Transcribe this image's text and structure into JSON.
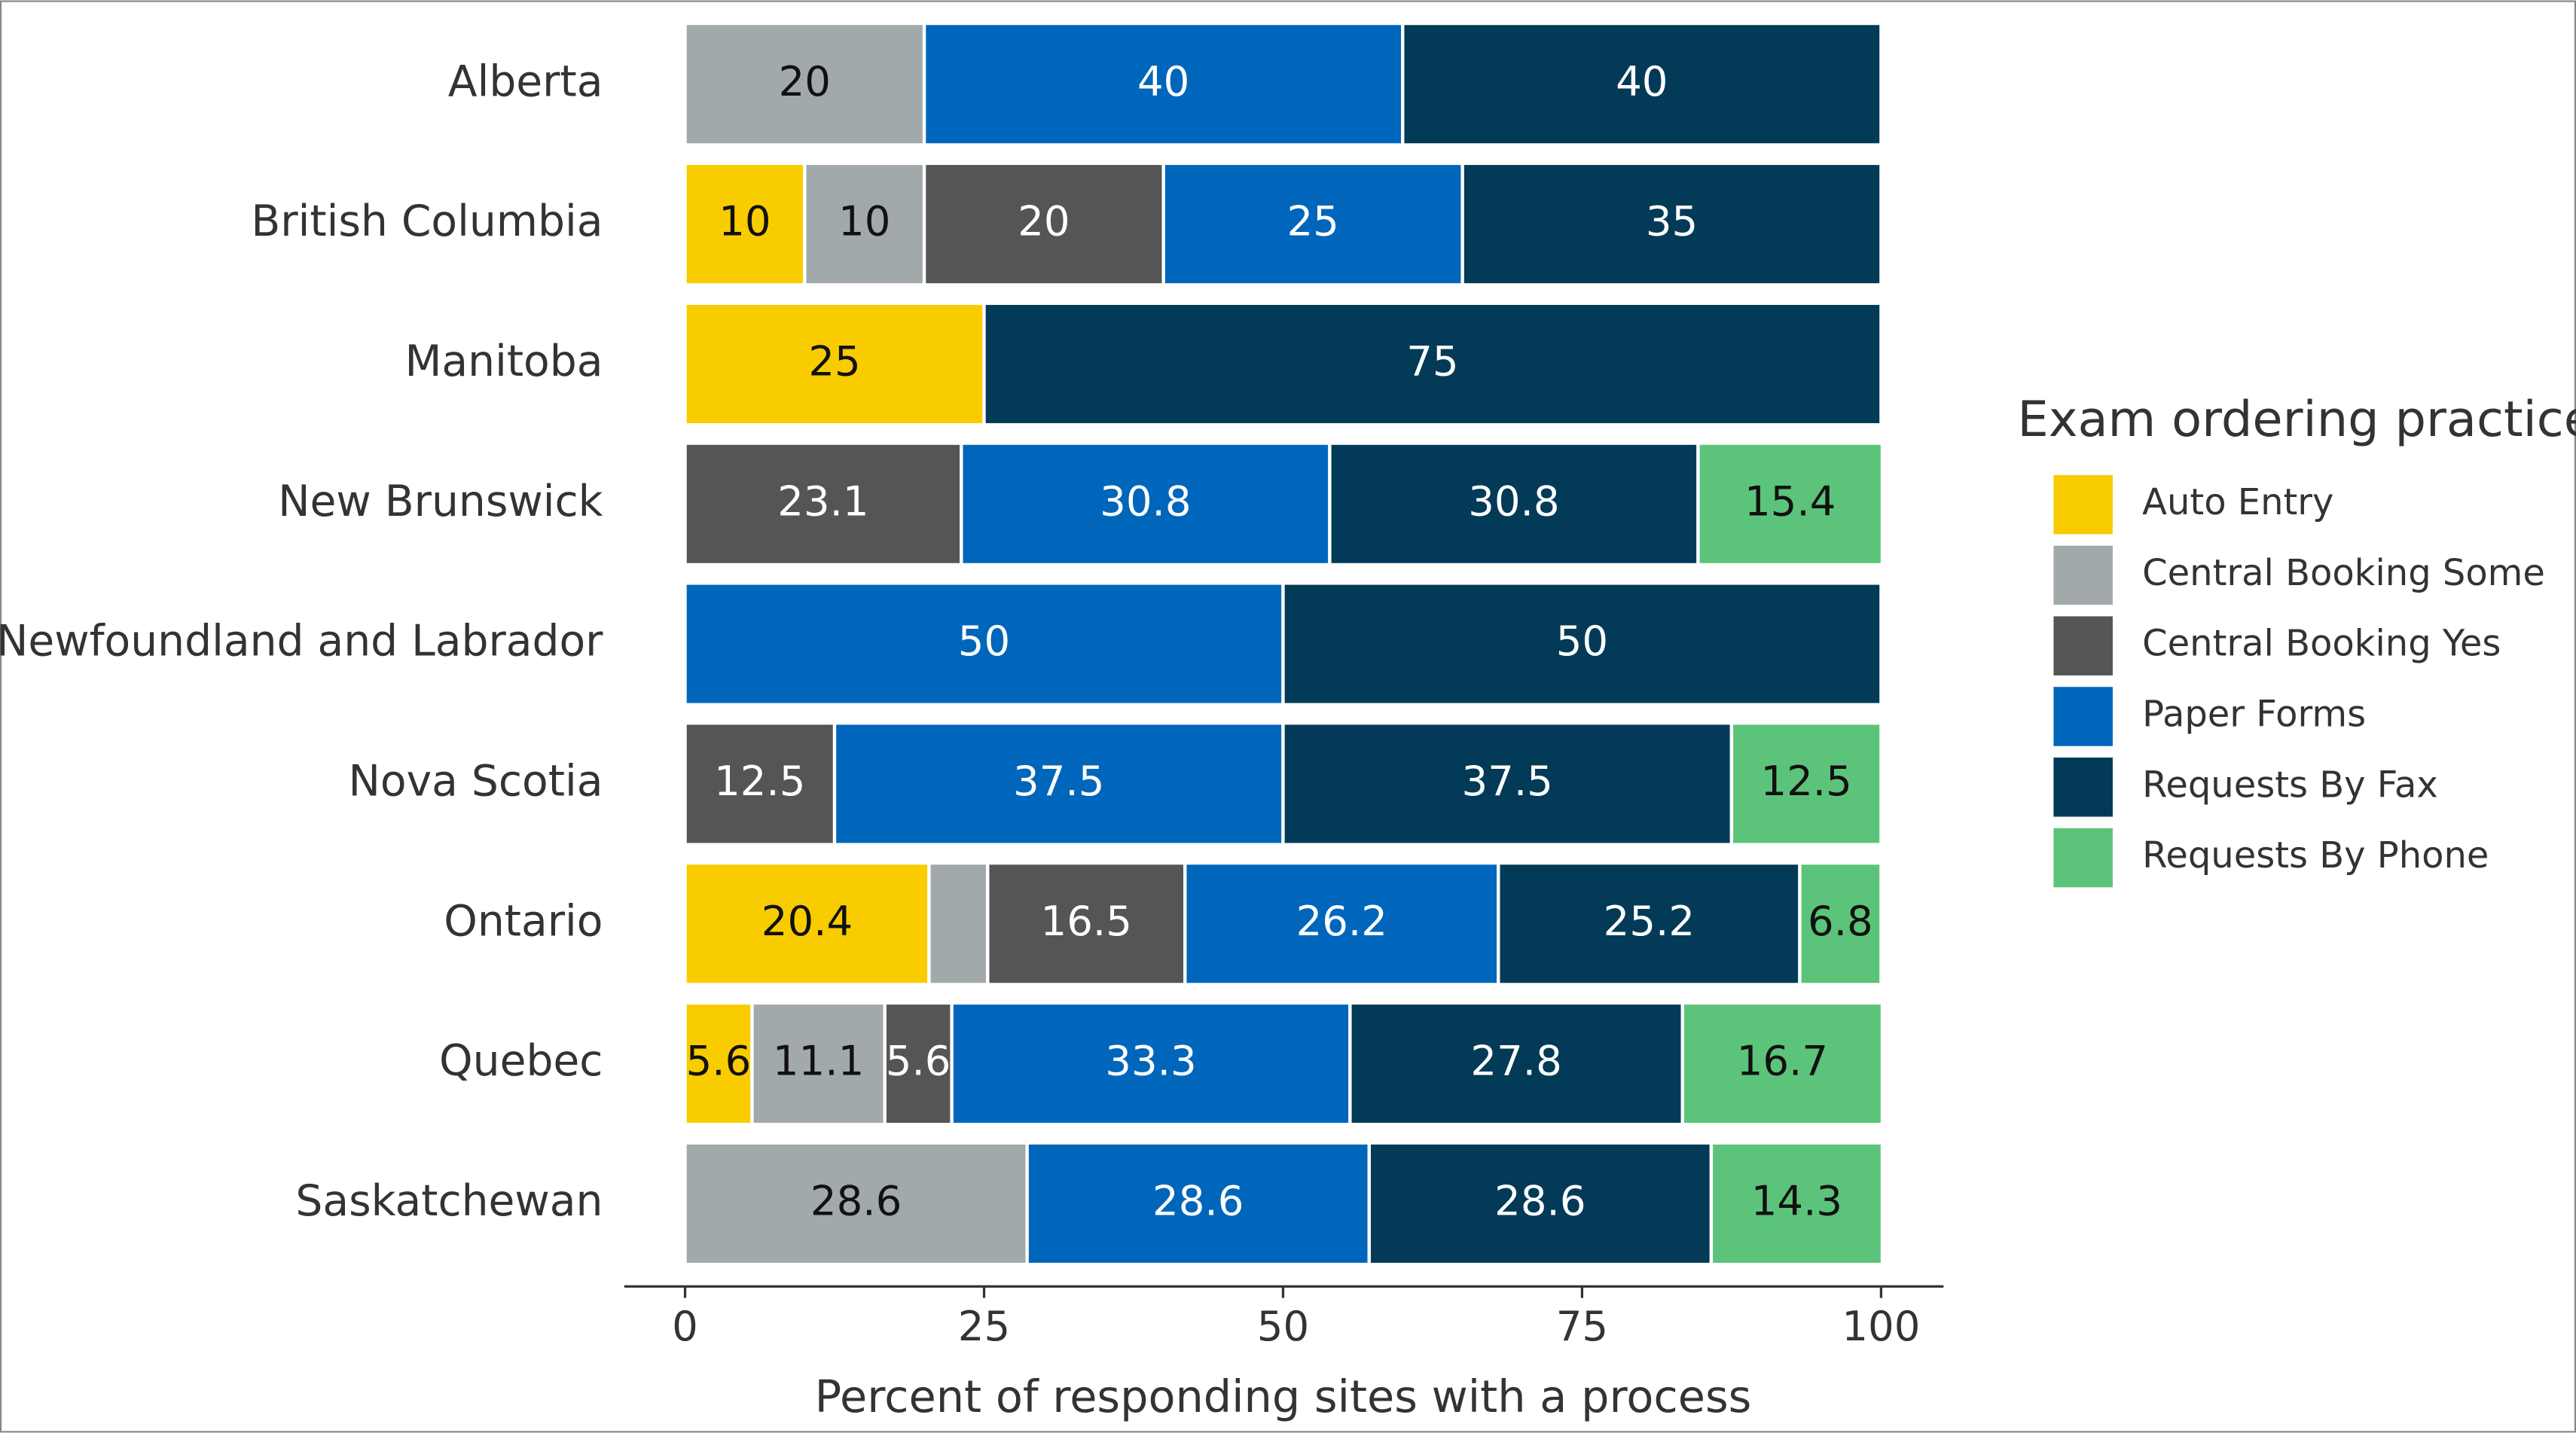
{
  "chart_data": {
    "type": "stacked-bar",
    "orientation": "horizontal",
    "categories": [
      "Alberta",
      "British Columbia",
      "Manitoba",
      "New Brunswick",
      "Newfoundland and Labrador",
      "Nova Scotia",
      "Ontario",
      "Quebec",
      "Saskatchewan"
    ],
    "series": [
      {
        "name": "Auto Entry",
        "color": "#f9cc00",
        "values": [
          null,
          10,
          25,
          null,
          null,
          null,
          20.4,
          5.6,
          null
        ]
      },
      {
        "name": "Central Booking Some",
        "color": "#a2a9ab",
        "values": [
          20,
          10,
          null,
          null,
          null,
          null,
          4.9,
          11.1,
          28.6
        ],
        "value_labels": [
          "20",
          "10",
          null,
          null,
          null,
          null,
          null,
          "11.1",
          "28.6"
        ]
      },
      {
        "name": "Central Booking Yes",
        "color": "#555555",
        "values": [
          null,
          20,
          null,
          23.1,
          null,
          12.5,
          16.5,
          5.6,
          null
        ]
      },
      {
        "name": "Paper Forms",
        "color": "#0066bb",
        "values": [
          40,
          25,
          null,
          30.8,
          50,
          37.5,
          26.2,
          33.3,
          28.6
        ]
      },
      {
        "name": "Requests By Fax",
        "color": "#023a57",
        "values": [
          40,
          35,
          75,
          30.8,
          50,
          37.5,
          25.2,
          27.8,
          28.6
        ]
      },
      {
        "name": "Requests By Phone",
        "color": "#5cc47a",
        "values": [
          null,
          null,
          null,
          15.4,
          null,
          12.5,
          6.8,
          16.7,
          14.3
        ]
      }
    ],
    "xlim": [
      0,
      100
    ],
    "xticks": [
      0,
      25,
      50,
      75,
      100
    ],
    "x_label": "Percent of responding sites with a process",
    "legend_title": "Exam ordering practice",
    "legend": "right",
    "grid": false
  }
}
